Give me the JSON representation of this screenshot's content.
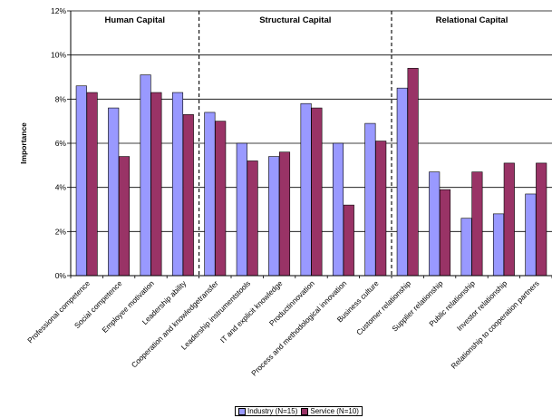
{
  "chart_data": {
    "type": "bar",
    "ylabel": "Importance",
    "ylim": [
      0,
      12
    ],
    "y_ticks": [
      "0%",
      "2%",
      "4%",
      "6%",
      "8%",
      "10%",
      "12%"
    ],
    "grid": true,
    "legend_position": "bottom",
    "groups": [
      {
        "label": "Human Capital",
        "start": 0,
        "end": 3
      },
      {
        "label": "Structural Capital",
        "start": 4,
        "end": 9
      },
      {
        "label": "Relational Capital",
        "start": 10,
        "end": 14
      }
    ],
    "categories": [
      "Professional competence",
      "Social competence",
      "Employee motivation",
      "Leadership ability",
      "Cooperation and knowledgetransfer",
      "Leadership instrumentstools",
      "IT and explicit knowledge",
      "Productinnovation",
      "Process and methodological innovation",
      "Business culture",
      "Customer relationship",
      "Supplier relationship",
      "Public relationship",
      "Investor relationship",
      "Relationship to cooperation partners"
    ],
    "series": [
      {
        "name": "Industry (N=15)",
        "color": "#9999ff",
        "values": [
          8.6,
          7.6,
          9.1,
          8.3,
          7.4,
          6.0,
          5.4,
          7.8,
          6.0,
          6.9,
          8.5,
          4.7,
          2.6,
          2.8,
          3.7
        ]
      },
      {
        "name": "Service (N=10)",
        "color": "#993366",
        "values": [
          8.3,
          5.4,
          8.3,
          7.3,
          7.0,
          5.2,
          5.6,
          7.6,
          3.2,
          6.1,
          9.4,
          3.9,
          4.7,
          5.1,
          5.1
        ]
      }
    ]
  }
}
